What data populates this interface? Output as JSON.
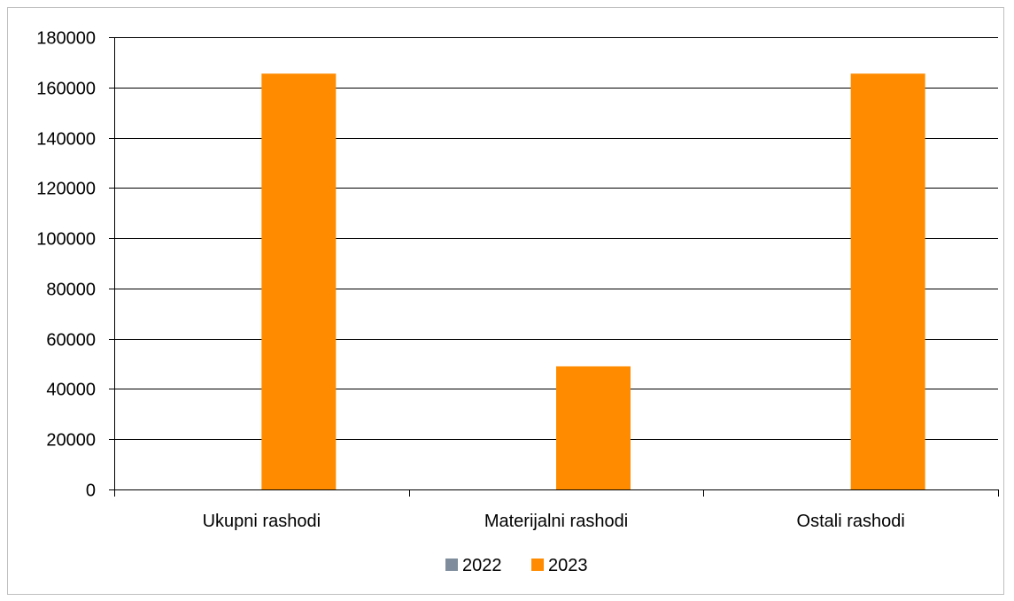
{
  "chart_data": {
    "type": "bar",
    "title": "",
    "xlabel": "",
    "ylabel": "",
    "categories": [
      "Ukupni rashodi",
      "Materijalni rashodi",
      "Ostali rashodi"
    ],
    "series": [
      {
        "name": "2022",
        "values": [
          0,
          0,
          0
        ],
        "color": "#7f8c9c"
      },
      {
        "name": "2023",
        "values": [
          165500,
          49000,
          165500
        ],
        "color": "#ff8c00"
      }
    ],
    "ylim": [
      0,
      180000
    ],
    "yticks": [
      0,
      20000,
      40000,
      60000,
      80000,
      100000,
      120000,
      140000,
      160000,
      180000
    ],
    "ytick_labels": [
      "0",
      "20000",
      "40000",
      "60000",
      "80000",
      "100000",
      "120000",
      "140000",
      "160000",
      "180000"
    ],
    "grid": "horizontal",
    "legend_position": "bottom"
  }
}
